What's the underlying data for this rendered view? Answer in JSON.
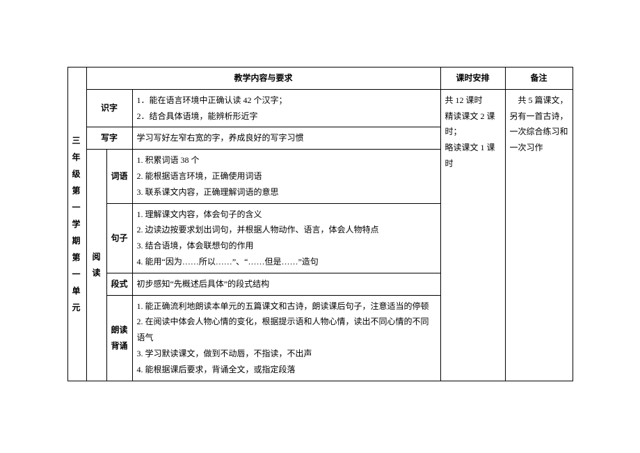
{
  "left_title": "三 年 级 第 一 学 期 第 一 单 元",
  "headers": {
    "content": "教学内容与要求",
    "schedule": "课时安排",
    "notes": "备注"
  },
  "rows": {
    "shizi_label": "识字",
    "shizi_text": "1．能在语言环境中正确认读 42 个汉字；\n2．结合具体语境，能辨析形近字",
    "xiezi_label": "写字",
    "xiezi_text": "学习写好左窄右宽的字，养成良好的写字习惯",
    "yuedu_label": "阅\n读",
    "ciyu_label": "词语",
    "ciyu_text": "1. 积累词语 38 个\n2. 能根据语言环境，正确使用词语\n3. 联系课文内容，正确理解词语的意思",
    "juzi_label": "句子",
    "juzi_text": "1. 理解课文内容，体会句子的含义\n2. 边读边按要求划出词句，并根据人物动作、语言，体会人物特点\n3. 结合语境，体会联想句的作用\n4. 能用“因为……所以……”、“……但是……”造句",
    "duanshi_label": "段式",
    "duanshi_text": "初步感知“先概述后具体”的段式结构",
    "langdu_label": "朗读\n背诵",
    "langdu_text": "1. 能正确流利地朗读本单元的五篇课文和古诗，朗读课后句子，注意适当的停顿\n2. 在阅读中体会人物心情的变化，根据提示语和人物心情，读出不同心情的不同语气\n3. 学习默读课文，做到不动唇，不指读，不出声\n4. 能根据课后要求，背诵全文，或指定段落"
  },
  "schedule_text": "共 12 课时\n精读课文 2 课时；\n略读课文 1 课时",
  "notes_text": "　共 5 篇课文，另有一首古诗，一次综合练习和一次习作"
}
